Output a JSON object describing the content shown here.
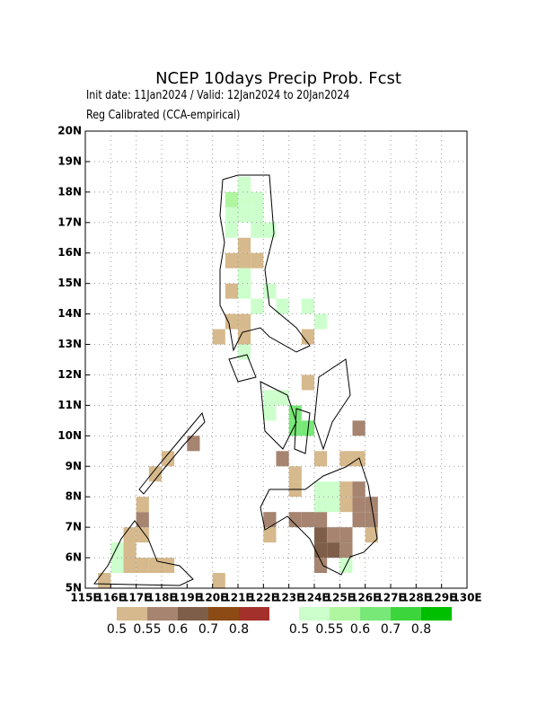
{
  "chart_data": {
    "type": "map",
    "title": "NCEP 10days Precip Prob. Fcst",
    "subtitle": "Init date: 11Jan2024 / Valid: 12Jan2024 to 20Jan2024",
    "note": "Reg Calibrated (CCA-empirical)",
    "xlim": [
      115,
      130
    ],
    "ylim": [
      5,
      20
    ],
    "grid": true,
    "xticks": [
      {
        "value": 115,
        "label": "115E"
      },
      {
        "value": 116,
        "label": "116E"
      },
      {
        "value": 117,
        "label": "117E"
      },
      {
        "value": 118,
        "label": "118E"
      },
      {
        "value": 119,
        "label": "119E"
      },
      {
        "value": 120,
        "label": "120E"
      },
      {
        "value": 121,
        "label": "121E"
      },
      {
        "value": 122,
        "label": "122E"
      },
      {
        "value": 123,
        "label": "123E"
      },
      {
        "value": 124,
        "label": "124E"
      },
      {
        "value": 125,
        "label": "125E"
      },
      {
        "value": 126,
        "label": "126E"
      },
      {
        "value": 127,
        "label": "127E"
      },
      {
        "value": 128,
        "label": "128E"
      },
      {
        "value": 129,
        "label": "129E"
      },
      {
        "value": 130,
        "label": "130E"
      }
    ],
    "yticks": [
      {
        "value": 5,
        "label": "5N"
      },
      {
        "value": 6,
        "label": "6N"
      },
      {
        "value": 7,
        "label": "7N"
      },
      {
        "value": 8,
        "label": "8N"
      },
      {
        "value": 9,
        "label": "9N"
      },
      {
        "value": 10,
        "label": "10N"
      },
      {
        "value": 11,
        "label": "11N"
      },
      {
        "value": 12,
        "label": "12N"
      },
      {
        "value": 13,
        "label": "13N"
      },
      {
        "value": 14,
        "label": "14N"
      },
      {
        "value": 15,
        "label": "15N"
      },
      {
        "value": 16,
        "label": "16N"
      },
      {
        "value": 17,
        "label": "17N"
      },
      {
        "value": 18,
        "label": "18N"
      },
      {
        "value": 19,
        "label": "19N"
      },
      {
        "value": 20,
        "label": "20N"
      }
    ],
    "colorbars": [
      {
        "colors": [
          "#d6b98c",
          "#a68470",
          "#7e5e48",
          "#8c4a14",
          "#a3302a"
        ],
        "levels": [
          0.5,
          0.55,
          0.6,
          0.7,
          0.8
        ]
      },
      {
        "colors": [
          "#ccffcc",
          "#b0f5a0",
          "#78e878",
          "#3cd63c",
          "#00bf00"
        ],
        "levels": [
          0.5,
          0.55,
          0.6,
          0.7,
          0.8
        ]
      }
    ],
    "below": [
      [
        120.5,
        15.5,
        0.52
      ],
      [
        121,
        15.5,
        0.52
      ],
      [
        121.5,
        15.5,
        0.52
      ],
      [
        121,
        16,
        0.52
      ],
      [
        120.5,
        14.5,
        0.52
      ],
      [
        120.5,
        13.5,
        0.52
      ],
      [
        120,
        13,
        0.52
      ],
      [
        121,
        13.5,
        0.52
      ],
      [
        121,
        13,
        0.52
      ],
      [
        123.5,
        13,
        0.52
      ],
      [
        123.5,
        11.5,
        0.52
      ],
      [
        122.5,
        9,
        0.57
      ],
      [
        123,
        8.5,
        0.52
      ],
      [
        124,
        9,
        0.52
      ],
      [
        123,
        8,
        0.52
      ],
      [
        125,
        8,
        0.52
      ],
      [
        125,
        7.5,
        0.52
      ],
      [
        125.5,
        8,
        0.57
      ],
      [
        125.5,
        7.5,
        0.57
      ],
      [
        125.5,
        7,
        0.57
      ],
      [
        126,
        7.5,
        0.57
      ],
      [
        126,
        7,
        0.57
      ],
      [
        126,
        6.5,
        0.52
      ],
      [
        122,
        7,
        0.57
      ],
      [
        122,
        6.5,
        0.52
      ],
      [
        123,
        7,
        0.57
      ],
      [
        124,
        7,
        0.57
      ],
      [
        124,
        6.5,
        0.62
      ],
      [
        124,
        6,
        0.62
      ],
      [
        124.5,
        6.5,
        0.57
      ],
      [
        124.5,
        6,
        0.62
      ],
      [
        125,
        6,
        0.57
      ],
      [
        125,
        6.5,
        0.57
      ],
      [
        123.5,
        7,
        0.57
      ],
      [
        124,
        5.5,
        0.57
      ],
      [
        125,
        9,
        0.52
      ],
      [
        125.5,
        9,
        0.52
      ],
      [
        125.5,
        10,
        0.57
      ],
      [
        116.5,
        5.5,
        0.52
      ],
      [
        116.5,
        6,
        0.52
      ],
      [
        116.5,
        6.5,
        0.52
      ],
      [
        117,
        6.5,
        0.52
      ],
      [
        117,
        7,
        0.57
      ],
      [
        117,
        5.5,
        0.52
      ],
      [
        117.5,
        5.5,
        0.52
      ],
      [
        118,
        5.5,
        0.52
      ],
      [
        117,
        7.5,
        0.52
      ],
      [
        118,
        9,
        0.52
      ],
      [
        117.5,
        8.5,
        0.52
      ],
      [
        119,
        9.5,
        0.57
      ],
      [
        115.5,
        5,
        0.52
      ],
      [
        120,
        5,
        0.52
      ]
    ],
    "above": [
      [
        120.5,
        17,
        0.52
      ],
      [
        120.5,
        17.5,
        0.57
      ],
      [
        121,
        17,
        0.52
      ],
      [
        121,
        17.5,
        0.52
      ],
      [
        121,
        18,
        0.52
      ],
      [
        121.5,
        17,
        0.52
      ],
      [
        121.5,
        17.5,
        0.52
      ],
      [
        121.5,
        16.5,
        0.52
      ],
      [
        122,
        16.5,
        0.52
      ],
      [
        120.5,
        16.5,
        0.52
      ],
      [
        121,
        15,
        0.52
      ],
      [
        121,
        14.5,
        0.52
      ],
      [
        121.5,
        14,
        0.52
      ],
      [
        122,
        14.5,
        0.52
      ],
      [
        122.5,
        14,
        0.52
      ],
      [
        121,
        12.5,
        0.52
      ],
      [
        122,
        11,
        0.52
      ],
      [
        122,
        10.5,
        0.52
      ],
      [
        122.5,
        11,
        0.52
      ],
      [
        123,
        10,
        0.62
      ],
      [
        123,
        10.5,
        0.62
      ],
      [
        123.5,
        10,
        0.62
      ],
      [
        124,
        8,
        0.52
      ],
      [
        124.5,
        8,
        0.52
      ],
      [
        124,
        7.5,
        0.52
      ],
      [
        124.5,
        7.5,
        0.52
      ],
      [
        125,
        5.5,
        0.52
      ],
      [
        116,
        6,
        0.52
      ],
      [
        116,
        5.5,
        0.52
      ],
      [
        123.5,
        14,
        0.52
      ],
      [
        124,
        13.5,
        0.52
      ]
    ]
  }
}
